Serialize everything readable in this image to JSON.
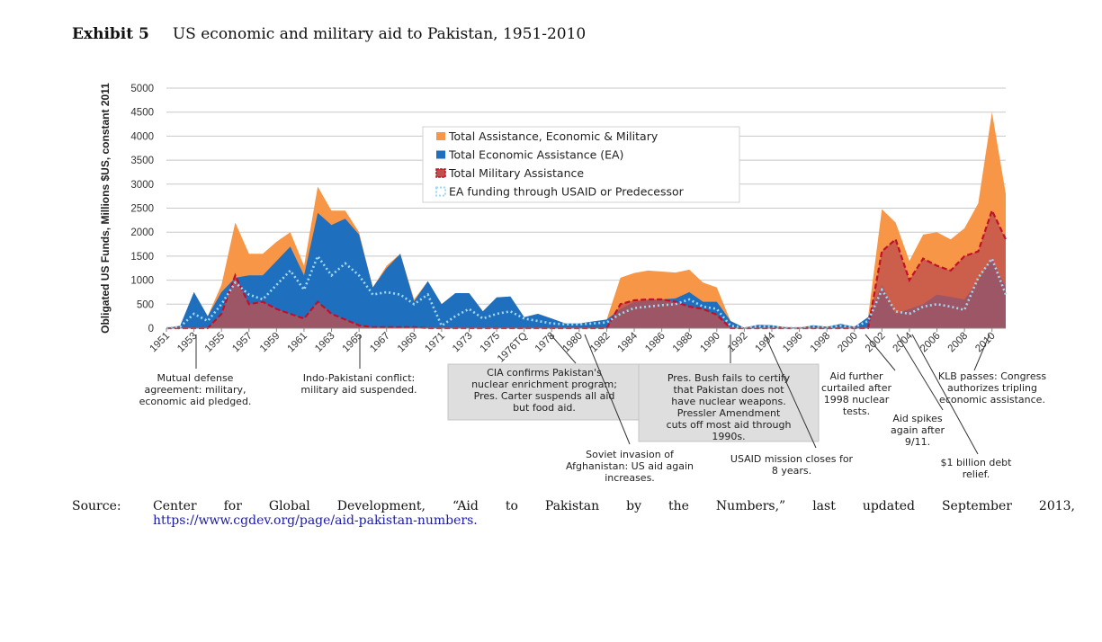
{
  "header": {
    "label": "Exhibit 5",
    "title": "US economic and military aid to Pakistan, 1951-2010"
  },
  "chart_data": {
    "type": "area",
    "title": "US economic and military aid to Pakistan, 1951-2010",
    "ylabel": "Obligated US Funds, Millions $US, constant 2011",
    "ylim": [
      0,
      5000
    ],
    "yticks": [
      0,
      500,
      1000,
      1500,
      2000,
      2500,
      3000,
      3500,
      4000,
      4500,
      5000
    ],
    "grid": true,
    "legend_position": "top-center",
    "x_tick_labels": [
      "1951",
      "1953",
      "1955",
      "1957",
      "1959",
      "1961",
      "1963",
      "1965",
      "1967",
      "1969",
      "1971",
      "1973",
      "1975",
      "1976TQ",
      "1978",
      "1980",
      "1982",
      "1984",
      "1986",
      "1988",
      "1990",
      "1992",
      "1994",
      "1996",
      "1998",
      "2000",
      "2002",
      "2004",
      "2006",
      "2008",
      "2010"
    ],
    "categories": [
      "1951",
      "1952",
      "1953",
      "1954",
      "1955",
      "1956",
      "1957",
      "1958",
      "1959",
      "1960",
      "1961",
      "1962",
      "1963",
      "1964",
      "1965",
      "1966",
      "1967",
      "1968",
      "1969",
      "1970",
      "1971",
      "1972",
      "1973",
      "1974",
      "1975",
      "1976",
      "1976TQ",
      "1977",
      "1978",
      "1979",
      "1980",
      "1981",
      "1982",
      "1983",
      "1984",
      "1985",
      "1986",
      "1987",
      "1988",
      "1989",
      "1990",
      "1991",
      "1992",
      "1993",
      "1994",
      "1995",
      "1996",
      "1997",
      "1998",
      "1999",
      "2000",
      "2001",
      "2002",
      "2003",
      "2004",
      "2005",
      "2006",
      "2007",
      "2008",
      "2009",
      "2010",
      "2011"
    ],
    "series": [
      {
        "name": "Total Assistance, Economic & Military",
        "color": "#f79646",
        "style": "area",
        "values": [
          0,
          50,
          750,
          250,
          900,
          2200,
          1550,
          1550,
          1800,
          2000,
          1300,
          2950,
          2450,
          2450,
          2000,
          850,
          1300,
          1550,
          600,
          980,
          500,
          730,
          730,
          350,
          640,
          660,
          230,
          300,
          200,
          100,
          100,
          140,
          180,
          1050,
          1150,
          1200,
          1180,
          1160,
          1220,
          950,
          850,
          150,
          10,
          70,
          60,
          20,
          10,
          60,
          30,
          90,
          30,
          230,
          2480,
          2200,
          1400,
          1950,
          2000,
          1850,
          2080,
          2600,
          4500,
          2800
        ]
      },
      {
        "name": "Total Economic Assistance (EA)",
        "color": "#1f6fbf",
        "style": "area",
        "values": [
          0,
          50,
          750,
          250,
          750,
          1050,
          1100,
          1100,
          1400,
          1700,
          1100,
          2400,
          2150,
          2280,
          1950,
          850,
          1250,
          1550,
          560,
          980,
          500,
          730,
          730,
          350,
          640,
          660,
          230,
          300,
          200,
          100,
          100,
          140,
          180,
          400,
          550,
          580,
          600,
          620,
          750,
          550,
          550,
          150,
          10,
          70,
          60,
          20,
          10,
          60,
          30,
          90,
          30,
          230,
          900,
          300,
          400,
          500,
          700,
          650,
          600,
          1000,
          1450,
          850
        ]
      },
      {
        "name": "Total Military Assistance",
        "color": "#c0504d",
        "style": "area",
        "values": [
          0,
          0,
          0,
          0,
          300,
          1100,
          500,
          550,
          400,
          300,
          200,
          550,
          300,
          180,
          60,
          20,
          20,
          20,
          20,
          0,
          0,
          0,
          0,
          0,
          0,
          0,
          0,
          0,
          0,
          0,
          0,
          0,
          0,
          500,
          580,
          600,
          600,
          550,
          450,
          400,
          280,
          0,
          0,
          0,
          0,
          0,
          0,
          0,
          0,
          0,
          0,
          0,
          1600,
          1850,
          1000,
          1450,
          1300,
          1200,
          1500,
          1600,
          2450,
          1850
        ]
      },
      {
        "name": "EA funding through USAID or Predecessor",
        "color": "#9fd8f0",
        "style": "dotted-line",
        "values": [
          0,
          30,
          300,
          150,
          500,
          950,
          700,
          600,
          900,
          1200,
          800,
          1500,
          1100,
          1350,
          1100,
          700,
          750,
          700,
          500,
          700,
          50,
          250,
          400,
          200,
          300,
          350,
          200,
          150,
          100,
          80,
          80,
          100,
          120,
          300,
          420,
          450,
          480,
          500,
          600,
          450,
          400,
          50,
          5,
          40,
          30,
          10,
          5,
          30,
          20,
          50,
          20,
          150,
          800,
          350,
          300,
          450,
          500,
          450,
          380,
          1050,
          1450,
          700
        ]
      }
    ],
    "legend": [
      "Total Assistance, Economic & Military",
      "Total Economic Assistance (EA)",
      "Total Military Assistance",
      "EA funding through USAID or Predecessor"
    ],
    "annotations": [
      {
        "text": [
          "Mutual defense",
          "agreement: military,",
          "economic aid pledged."
        ],
        "year": "1954",
        "boxed": false
      },
      {
        "text": [
          "Indo-Pakistani conflict:",
          "military aid suspended."
        ],
        "year": "1965",
        "boxed": false
      },
      {
        "text": [
          "CIA confirms Pakistan's",
          "nuclear enrichment program;",
          "Pres. Carter suspends all aid",
          "but food aid."
        ],
        "year": "1979",
        "boxed": true
      },
      {
        "text": [
          "Soviet invasion of",
          "Afghanistan: US aid again",
          "increases."
        ],
        "year": "1981",
        "boxed": false
      },
      {
        "text": [
          "Pres. Bush fails to certify",
          "that Pakistan does not",
          "have nuclear weapons.",
          "Pressler Amendment",
          "cuts off most aid through",
          "1990s."
        ],
        "year": "1990",
        "boxed": true
      },
      {
        "text": [
          "USAID mission closes for",
          "8 years."
        ],
        "year": "1994",
        "boxed": false
      },
      {
        "text": [
          "Aid further",
          "curtailed after",
          "1998 nuclear",
          "tests."
        ],
        "year": "1999",
        "boxed": false
      },
      {
        "text": [
          "Aid spikes",
          "again after",
          "9/11."
        ],
        "year": "2002",
        "boxed": false
      },
      {
        "text": [
          "KLB passes: Congress",
          "authorizes tripling",
          "economic assistance."
        ],
        "year": "2010",
        "boxed": false
      },
      {
        "text": [
          "$1 billion debt",
          "relief."
        ],
        "year": "2003",
        "boxed": false
      }
    ]
  },
  "source": {
    "label": "Source:",
    "text": "Center for Global Development, “Aid to Pakistan by the Numbers,” last updated September 2013,",
    "link": "https://www.cgdev.org/page/aid-pakistan-numbers."
  }
}
